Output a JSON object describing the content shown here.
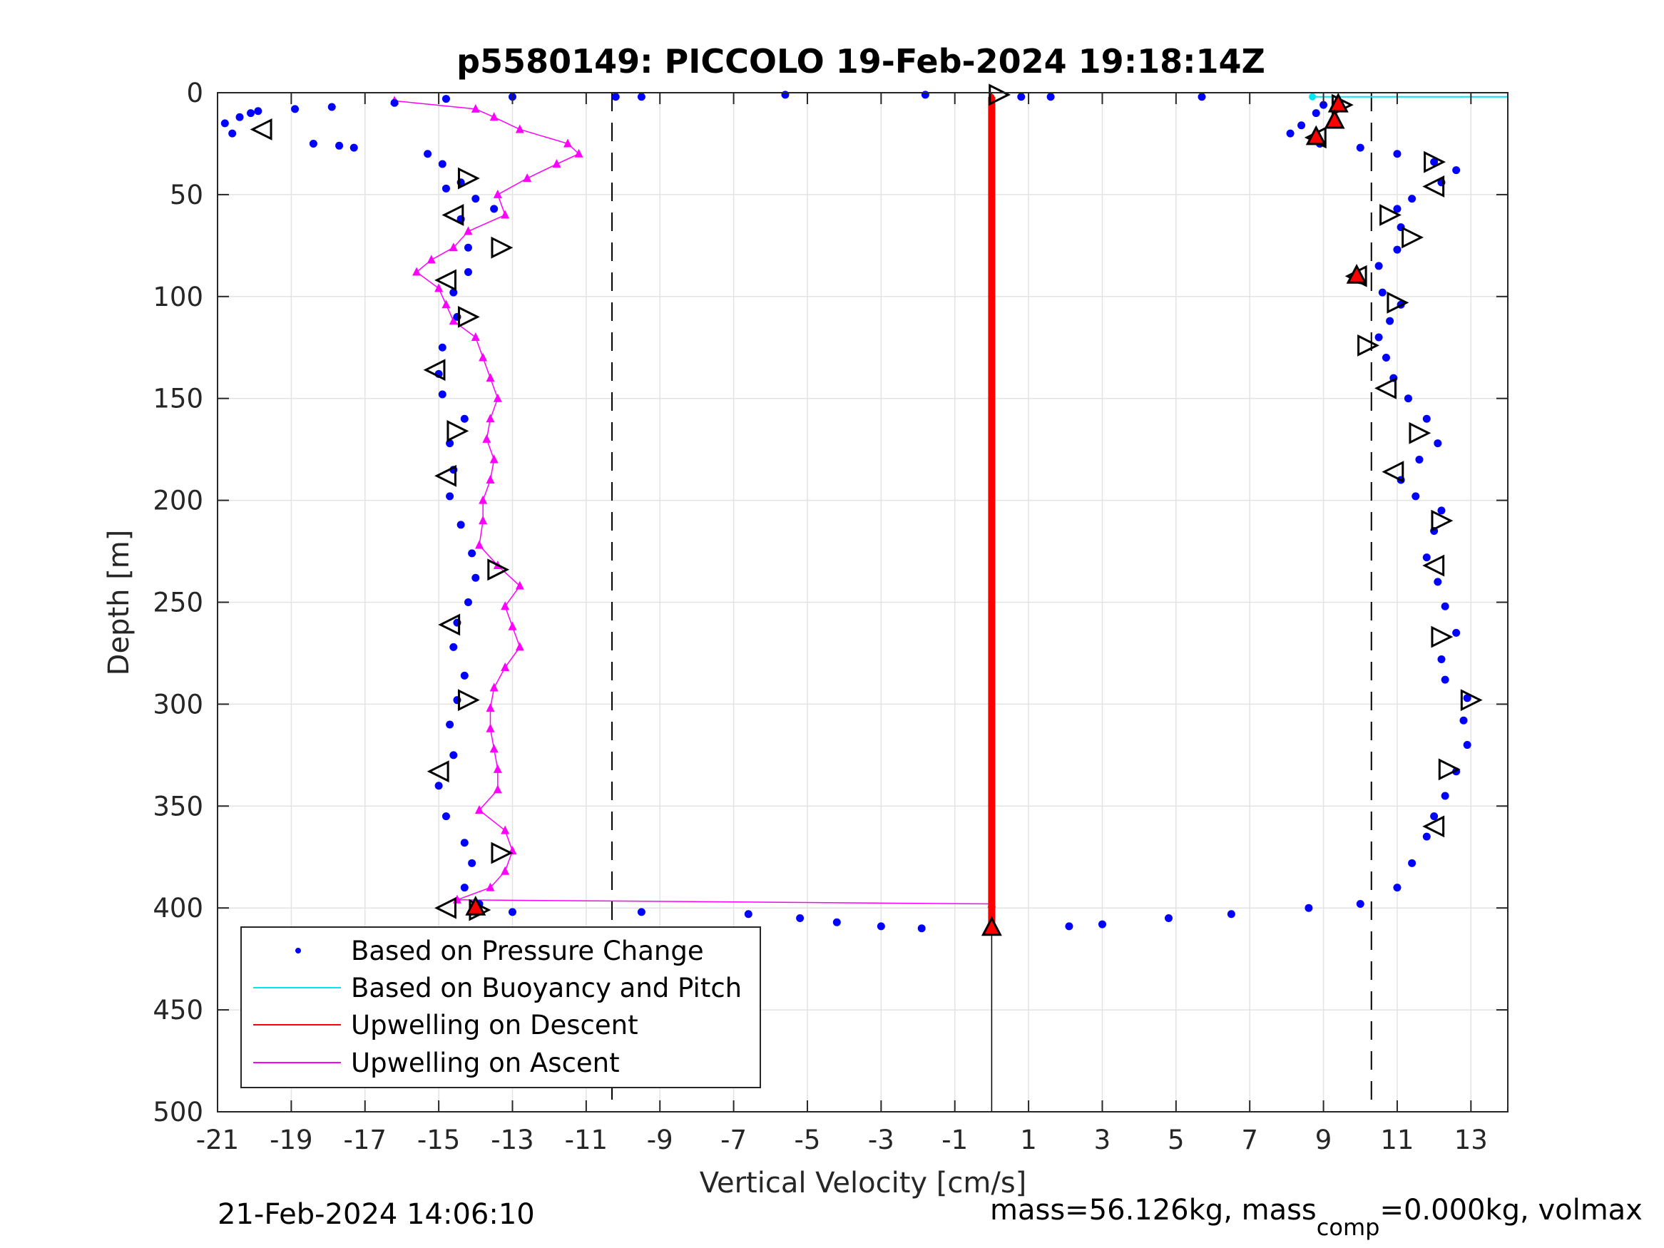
{
  "chart_data": {
    "type": "scatter",
    "title": "p5580149: PICCOLO 19-Feb-2024 19:18:14Z",
    "xlabel": "Vertical Velocity [cm/s]",
    "ylabel": "Depth [m]",
    "xlim": [
      -21,
      14
    ],
    "ylim": [
      0,
      500
    ],
    "y_reversed": true,
    "grid": true,
    "xticks": [
      "-21",
      "-19",
      "-17",
      "-15",
      "-13",
      "-11",
      "-9",
      "-7",
      "-5",
      "-3",
      "-1",
      "1",
      "3",
      "5",
      "7",
      "9",
      "11",
      "13"
    ],
    "yticks": [
      "0",
      "50",
      "100",
      "150",
      "200",
      "250",
      "300",
      "350",
      "400",
      "450",
      "500"
    ],
    "reference_lines": {
      "dashed_x": [
        -10.3,
        10.3
      ],
      "solid_x": 0
    },
    "legend": {
      "placement": "bottom-left",
      "entries": [
        {
          "label": "Based on Pressure Change",
          "color": "#0000ff",
          "style": "dot"
        },
        {
          "label": "Based on Buoyancy and Pitch",
          "color": "#00e5ee",
          "style": "line"
        },
        {
          "label": "Upwelling on Descent",
          "color": "#ff0000",
          "style": "line"
        },
        {
          "label": "Upwelling on Ascent",
          "color": "#ff00ff",
          "style": "line"
        }
      ]
    },
    "series": [
      {
        "name": "Based on Pressure Change",
        "color": "#0000ff",
        "points": [
          [
            -20.8,
            15
          ],
          [
            -20.4,
            12
          ],
          [
            -20.1,
            10
          ],
          [
            -20.6,
            20
          ],
          [
            -19.9,
            9
          ],
          [
            -18.9,
            8
          ],
          [
            -18.4,
            25
          ],
          [
            -17.9,
            7
          ],
          [
            -17.7,
            26
          ],
          [
            -17.3,
            27
          ],
          [
            -16.2,
            5
          ],
          [
            -14.8,
            3
          ],
          [
            -13.0,
            2
          ],
          [
            -10.2,
            2
          ],
          [
            -9.5,
            2
          ],
          [
            -5.6,
            1
          ],
          [
            -1.8,
            1
          ],
          [
            0.8,
            2
          ],
          [
            1.6,
            2
          ],
          [
            5.7,
            2
          ],
          [
            9.0,
            6
          ],
          [
            8.8,
            10
          ],
          [
            8.4,
            16
          ],
          [
            8.1,
            20
          ],
          [
            8.9,
            25
          ],
          [
            10.0,
            27
          ],
          [
            11.0,
            30
          ],
          [
            12.0,
            34
          ],
          [
            12.6,
            38
          ],
          [
            12.2,
            44
          ],
          [
            11.4,
            52
          ],
          [
            11.0,
            57
          ],
          [
            11.1,
            66
          ],
          [
            11.0,
            77
          ],
          [
            10.5,
            85
          ],
          [
            10.0,
            92
          ],
          [
            10.6,
            98
          ],
          [
            11.1,
            104
          ],
          [
            10.8,
            112
          ],
          [
            10.5,
            120
          ],
          [
            10.7,
            130
          ],
          [
            10.9,
            140
          ],
          [
            11.3,
            150
          ],
          [
            11.8,
            160
          ],
          [
            12.1,
            172
          ],
          [
            11.6,
            180
          ],
          [
            11.1,
            190
          ],
          [
            11.5,
            198
          ],
          [
            12.2,
            205
          ],
          [
            12.0,
            215
          ],
          [
            11.8,
            228
          ],
          [
            12.1,
            240
          ],
          [
            12.3,
            252
          ],
          [
            12.6,
            265
          ],
          [
            12.2,
            278
          ],
          [
            12.3,
            288
          ],
          [
            12.9,
            297
          ],
          [
            12.8,
            308
          ],
          [
            12.9,
            320
          ],
          [
            12.6,
            333
          ],
          [
            12.3,
            345
          ],
          [
            12.0,
            355
          ],
          [
            11.8,
            365
          ],
          [
            11.4,
            378
          ],
          [
            11.0,
            390
          ],
          [
            10.0,
            398
          ],
          [
            8.6,
            400
          ],
          [
            6.5,
            403
          ],
          [
            4.8,
            405
          ],
          [
            3.0,
            408
          ],
          [
            2.1,
            409
          ],
          [
            -1.9,
            410
          ],
          [
            -3.0,
            409
          ],
          [
            -4.2,
            407
          ],
          [
            -5.2,
            405
          ],
          [
            -6.6,
            403
          ],
          [
            -9.5,
            402
          ],
          [
            -13.0,
            402
          ],
          [
            -13.9,
            398
          ],
          [
            -14.3,
            390
          ],
          [
            -14.1,
            378
          ],
          [
            -14.3,
            368
          ],
          [
            -14.8,
            355
          ],
          [
            -15.0,
            340
          ],
          [
            -14.6,
            325
          ],
          [
            -14.7,
            310
          ],
          [
            -14.5,
            298
          ],
          [
            -14.3,
            286
          ],
          [
            -14.6,
            272
          ],
          [
            -14.5,
            260
          ],
          [
            -14.2,
            250
          ],
          [
            -14.0,
            238
          ],
          [
            -14.1,
            226
          ],
          [
            -14.4,
            212
          ],
          [
            -14.7,
            198
          ],
          [
            -14.6,
            185
          ],
          [
            -14.7,
            172
          ],
          [
            -14.3,
            160
          ],
          [
            -14.9,
            148
          ],
          [
            -15.0,
            138
          ],
          [
            -14.9,
            125
          ],
          [
            -14.5,
            110
          ],
          [
            -14.6,
            98
          ],
          [
            -14.2,
            88
          ],
          [
            -14.2,
            76
          ],
          [
            -14.4,
            62
          ],
          [
            -14.0,
            52
          ],
          [
            -14.4,
            44
          ],
          [
            -14.9,
            35
          ],
          [
            -15.3,
            30
          ],
          [
            -13.5,
            57
          ],
          [
            -14.8,
            47
          ]
        ]
      },
      {
        "name": "Based on Buoyancy and Pitch",
        "color": "#00e5ee",
        "points": [
          [
            8.7,
            2
          ],
          [
            14,
            2
          ]
        ]
      },
      {
        "name": "Upwelling on Descent",
        "color": "#ff0000",
        "points": [
          [
            0,
            2
          ],
          [
            0,
            50
          ],
          [
            0,
            100
          ],
          [
            0,
            150
          ],
          [
            0,
            200
          ],
          [
            0,
            250
          ],
          [
            0,
            300
          ],
          [
            0,
            350
          ],
          [
            0,
            400
          ],
          [
            0,
            410
          ]
        ]
      },
      {
        "name": "Upwelling on Ascent",
        "color": "#ff00ff",
        "points": [
          [
            -16.2,
            4
          ],
          [
            -14.0,
            8
          ],
          [
            -13.5,
            12
          ],
          [
            -12.8,
            18
          ],
          [
            -11.5,
            25
          ],
          [
            -11.2,
            30
          ],
          [
            -11.8,
            35
          ],
          [
            -12.6,
            42
          ],
          [
            -13.4,
            50
          ],
          [
            -13.2,
            60
          ],
          [
            -14.2,
            68
          ],
          [
            -14.6,
            76
          ],
          [
            -15.2,
            82
          ],
          [
            -15.6,
            88
          ],
          [
            -15.0,
            96
          ],
          [
            -14.8,
            104
          ],
          [
            -14.6,
            112
          ],
          [
            -14.0,
            120
          ],
          [
            -13.8,
            130
          ],
          [
            -13.6,
            140
          ],
          [
            -13.4,
            150
          ],
          [
            -13.6,
            160
          ],
          [
            -13.7,
            170
          ],
          [
            -13.5,
            180
          ],
          [
            -13.6,
            190
          ],
          [
            -13.8,
            200
          ],
          [
            -13.8,
            210
          ],
          [
            -13.9,
            222
          ],
          [
            -13.4,
            232
          ],
          [
            -12.8,
            242
          ],
          [
            -13.2,
            252
          ],
          [
            -13.0,
            262
          ],
          [
            -12.8,
            272
          ],
          [
            -13.2,
            282
          ],
          [
            -13.5,
            292
          ],
          [
            -13.6,
            302
          ],
          [
            -13.6,
            312
          ],
          [
            -13.5,
            322
          ],
          [
            -13.4,
            332
          ],
          [
            -13.4,
            342
          ],
          [
            -13.9,
            352
          ],
          [
            -13.2,
            362
          ],
          [
            -13.0,
            372
          ],
          [
            -13.2,
            382
          ],
          [
            -13.6,
            390
          ],
          [
            -14.5,
            396
          ],
          [
            0,
            398
          ]
        ]
      }
    ],
    "markers": {
      "descent_open_triangles": [
        [
          0.2,
          1
        ],
        [
          -14.2,
          42
        ],
        [
          -13.3,
          76
        ],
        [
          -14.2,
          110
        ],
        [
          -14.5,
          166
        ],
        [
          -13.4,
          234
        ],
        [
          -14.2,
          298
        ],
        [
          -13.3,
          373
        ],
        [
          -13.9,
          401
        ],
        [
          12.0,
          34
        ],
        [
          10.8,
          60
        ],
        [
          11.4,
          71
        ],
        [
          11.0,
          103
        ],
        [
          10.2,
          124
        ],
        [
          11.6,
          167
        ],
        [
          12.2,
          210
        ],
        [
          12.2,
          267
        ],
        [
          13.0,
          298
        ],
        [
          12.4,
          332
        ],
        [
          9.5,
          6
        ]
      ],
      "ascent_open_triangles": [
        [
          -19.8,
          18
        ],
        [
          -14.6,
          60
        ],
        [
          -14.8,
          92
        ],
        [
          -15.1,
          136
        ],
        [
          -14.8,
          188
        ],
        [
          -14.7,
          261
        ],
        [
          -15.0,
          333
        ],
        [
          -14.8,
          400
        ],
        [
          12.0,
          46
        ],
        [
          9.9,
          90
        ],
        [
          10.7,
          145
        ],
        [
          10.9,
          186
        ],
        [
          12.0,
          232
        ],
        [
          12.0,
          360
        ],
        [
          8.8,
          22
        ]
      ],
      "red_filled_triangles": [
        [
          9.4,
          6
        ],
        [
          9.3,
          14
        ],
        [
          8.8,
          22
        ],
        [
          9.9,
          90
        ],
        [
          -14.0,
          400
        ],
        [
          0,
          410
        ]
      ]
    }
  },
  "footer": {
    "timestamp": "21-Feb-2024 14:06:10",
    "mass_pre": "mass=56.126kg, mass",
    "mass_sub": "comp",
    "mass_post": "=0.000kg, volmax"
  }
}
